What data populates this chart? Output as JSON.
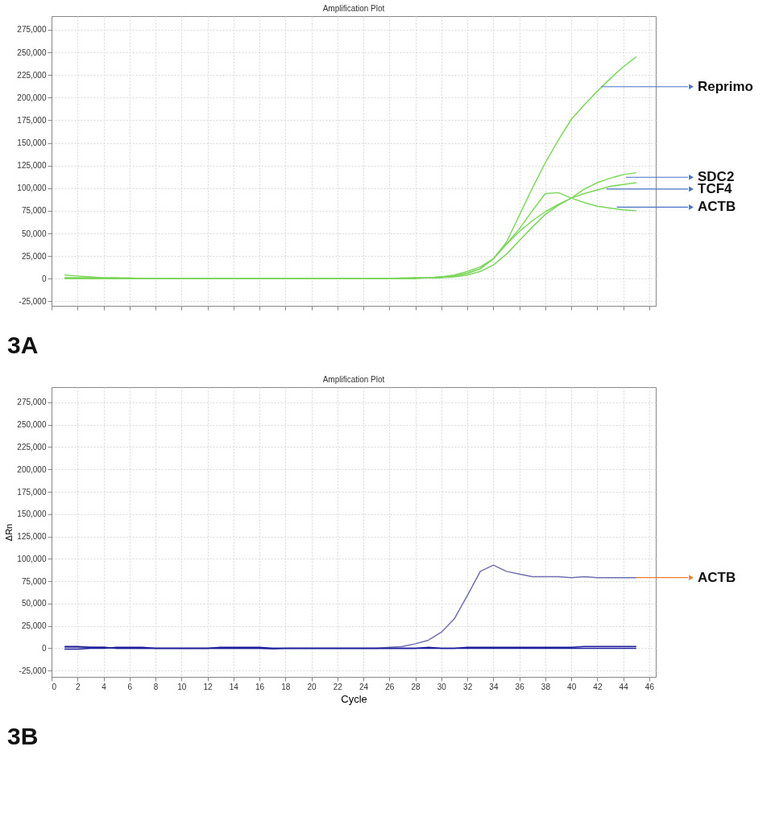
{
  "chart_data": [
    {
      "type": "line",
      "title": "Amplification Plot",
      "x": [
        1,
        2,
        3,
        4,
        5,
        6,
        7,
        8,
        9,
        10,
        11,
        12,
        13,
        14,
        15,
        16,
        17,
        18,
        19,
        20,
        21,
        22,
        23,
        24,
        25,
        26,
        27,
        28,
        29,
        30,
        31,
        32,
        33,
        34,
        35,
        36,
        37,
        38,
        39,
        40,
        41,
        42,
        43,
        44,
        45
      ],
      "series": [
        {
          "color": "#7dd65c",
          "values": [
            1000,
            1000,
            1000,
            1000,
            1000,
            0,
            0,
            0,
            0,
            0,
            0,
            0,
            0,
            0,
            0,
            0,
            0,
            0,
            0,
            0,
            0,
            0,
            0,
            0,
            0,
            0,
            0,
            1000,
            1000,
            2000,
            4000,
            8000,
            13000,
            22000,
            40000,
            70000,
            100000,
            128000,
            153000,
            176000,
            192000,
            207000,
            221000,
            234000,
            245000
          ]
        },
        {
          "color": "#7dd65c",
          "values": [
            4000,
            3000,
            2000,
            1000,
            1000,
            1000,
            0,
            0,
            0,
            0,
            0,
            0,
            0,
            0,
            0,
            0,
            0,
            0,
            0,
            0,
            0,
            0,
            0,
            0,
            0,
            0,
            1000,
            1000,
            1000,
            2000,
            3000,
            6000,
            11000,
            22000,
            38000,
            55000,
            75000,
            94000,
            95000,
            89000,
            84000,
            80000,
            78000,
            76000,
            75000
          ]
        },
        {
          "color": "#7dd65c",
          "values": [
            0,
            0,
            0,
            0,
            0,
            0,
            0,
            0,
            0,
            0,
            0,
            0,
            0,
            0,
            0,
            0,
            0,
            0,
            0,
            0,
            0,
            0,
            0,
            0,
            0,
            0,
            0,
            0,
            1000,
            1000,
            2000,
            4000,
            8000,
            15000,
            27000,
            42000,
            57000,
            71000,
            81000,
            89000,
            99000,
            106000,
            111000,
            115000,
            117000
          ]
        },
        {
          "color": "#7dd65c",
          "values": [
            1000,
            1000,
            1000,
            0,
            0,
            0,
            0,
            0,
            0,
            0,
            0,
            0,
            0,
            0,
            0,
            0,
            0,
            0,
            0,
            0,
            0,
            0,
            0,
            0,
            0,
            0,
            0,
            1000,
            1000,
            2000,
            3000,
            6000,
            11000,
            22000,
            38000,
            52000,
            64000,
            74000,
            82000,
            89000,
            94000,
            98000,
            102000,
            104000,
            106000
          ]
        }
      ],
      "xlim": [
        0,
        46.5
      ],
      "xticks": [
        0,
        2,
        4,
        6,
        8,
        10,
        12,
        14,
        16,
        18,
        20,
        22,
        24,
        26,
        28,
        30,
        32,
        34,
        36,
        38,
        40,
        42,
        44,
        46
      ],
      "ylim": [
        -30000,
        290000
      ],
      "yticks": [
        {
          "value": -25000,
          "label": "-25,000"
        },
        0,
        {
          "value": 25000,
          "label": "25,000"
        },
        {
          "value": 50000,
          "label": "50,000"
        },
        {
          "value": 75000,
          "label": "75,000"
        },
        {
          "value": 100000,
          "label": "100,000"
        },
        {
          "value": 125000,
          "label": "125,000"
        },
        {
          "value": 150000,
          "label": "150,000"
        },
        {
          "value": 175000,
          "label": "175,000"
        },
        {
          "value": 200000,
          "label": "200,000"
        },
        {
          "value": 225000,
          "label": "225,000"
        },
        {
          "value": 250000,
          "label": "250,000"
        },
        {
          "value": 275000,
          "label": "275,000"
        }
      ],
      "tick_labels": "y",
      "grid": true,
      "legend": false,
      "marker": "none",
      "line_style": "solid",
      "annotations": [
        {
          "text": "Reprimo",
          "x": 42.3,
          "y": 212000
        },
        {
          "text": "SDC2",
          "x": 44.2,
          "y": 112000
        },
        {
          "text": "TCF4",
          "x": 42.7,
          "y": 99000
        },
        {
          "text": "ACTB",
          "x": 43.5,
          "y": 79000
        },
        "3A"
      ]
    },
    {
      "type": "line",
      "title": "Amplification Plot",
      "xlabel": "Cycle",
      "ylabel": "ΔRn",
      "x": [
        1,
        2,
        3,
        4,
        5,
        6,
        7,
        8,
        9,
        10,
        11,
        12,
        13,
        14,
        15,
        16,
        17,
        18,
        19,
        20,
        21,
        22,
        23,
        24,
        25,
        26,
        27,
        28,
        29,
        30,
        31,
        32,
        33,
        34,
        35,
        36,
        37,
        38,
        39,
        40,
        41,
        42,
        43,
        44,
        45
      ],
      "series": [
        {
          "color": "#6f6fb0",
          "values": [
            1000,
            1000,
            1000,
            1000,
            0,
            0,
            0,
            0,
            0,
            0,
            0,
            0,
            0,
            0,
            0,
            0,
            -1000,
            0,
            0,
            0,
            0,
            0,
            0,
            0,
            0,
            1000,
            2000,
            5000,
            9000,
            18000,
            33000,
            59000,
            86000,
            93000,
            86000,
            83000,
            80000,
            80000,
            80000,
            79000,
            80000,
            79000,
            79000,
            79000,
            79000
          ]
        },
        {
          "color": "#1c1c9c",
          "values": [
            -1000,
            -1000,
            0,
            0,
            1000,
            1000,
            1000,
            0,
            0,
            0,
            0,
            0,
            1000,
            1000,
            1000,
            1000,
            0,
            0,
            0,
            0,
            0,
            0,
            0,
            0,
            0,
            0,
            0,
            0,
            0,
            0,
            0,
            1000,
            1000,
            1000,
            1000,
            1000,
            1000,
            1000,
            1000,
            1000,
            2000,
            2000,
            2000,
            2000,
            2000
          ]
        },
        {
          "color": "#1c1c9c",
          "values": [
            2000,
            2000,
            1000,
            1000,
            0,
            0,
            0,
            0,
            0,
            0,
            0,
            0,
            0,
            0,
            0,
            0,
            0,
            0,
            0,
            0,
            0,
            0,
            0,
            0,
            0,
            0,
            0,
            0,
            1000,
            0,
            0,
            0,
            0,
            0,
            0,
            0,
            0,
            0,
            0,
            0,
            0,
            0,
            0,
            0,
            0
          ]
        }
      ],
      "xlim": [
        0,
        46.5
      ],
      "xticks": [
        0,
        2,
        4,
        6,
        8,
        10,
        12,
        14,
        16,
        18,
        20,
        22,
        24,
        26,
        28,
        30,
        32,
        34,
        36,
        38,
        40,
        42,
        44,
        46
      ],
      "ylim": [
        -32000,
        292000
      ],
      "yticks": [
        {
          "value": -25000,
          "label": "-25,000"
        },
        0,
        {
          "value": 25000,
          "label": "25,000"
        },
        {
          "value": 50000,
          "label": "50,000"
        },
        {
          "value": 75000,
          "label": "75,000"
        },
        {
          "value": 100000,
          "label": "100,000"
        },
        {
          "value": 125000,
          "label": "125,000"
        },
        {
          "value": 150000,
          "label": "150,000"
        },
        {
          "value": 175000,
          "label": "175,000"
        },
        {
          "value": 200000,
          "label": "200,000"
        },
        {
          "value": 225000,
          "label": "225,000"
        },
        {
          "value": 250000,
          "label": "250,000"
        },
        {
          "value": 275000,
          "label": "275,000"
        }
      ],
      "grid": true,
      "legend": false,
      "marker": "none",
      "line_style": "solid",
      "annotations": [
        {
          "text": "ACTB",
          "x": 45,
          "y": 79000
        },
        "3B"
      ]
    }
  ]
}
